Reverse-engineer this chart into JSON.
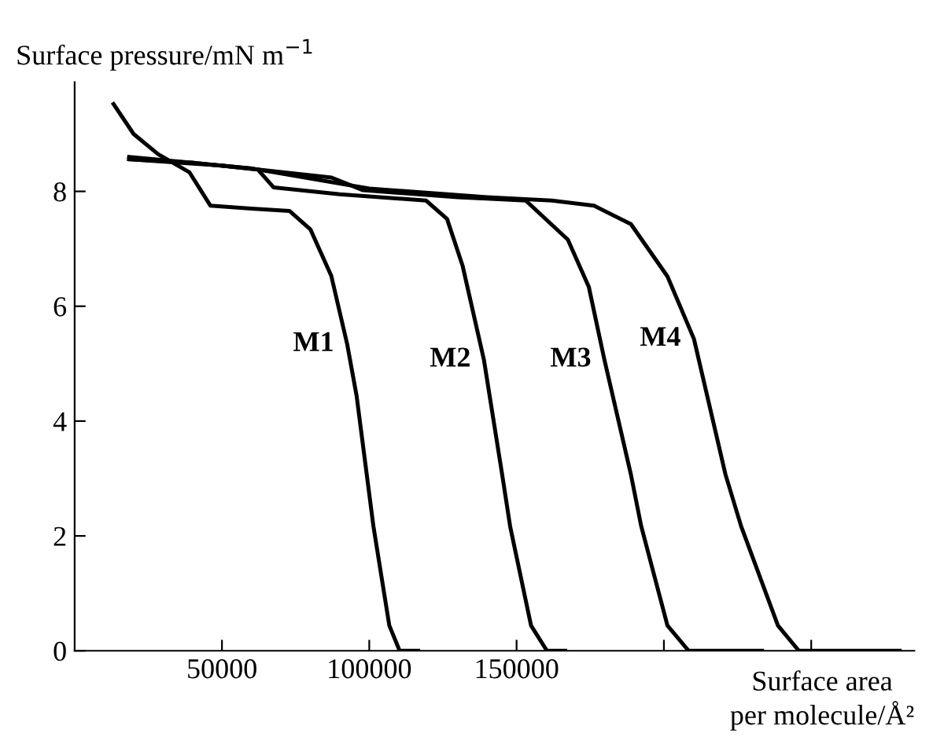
{
  "chart_data": {
    "type": "line",
    "xlabel": "Surface area\nper molecule/Å²",
    "ylabel": "Surface pressure/mN m$^{−1}$",
    "xlim": [
      0,
      285000
    ],
    "ylim": [
      0,
      9.9
    ],
    "xticks": [
      50000,
      100000,
      150000,
      {
        "value": 200000,
        "label": null
      },
      {
        "value": 250000,
        "label": null
      }
    ],
    "yticks": [
      0,
      2,
      4,
      6,
      8
    ],
    "grid": false,
    "legend": false,
    "marker": "none",
    "line_style": "solid",
    "series": [
      {
        "name": "M1",
        "color": "#000000",
        "x": [
          13200,
          20000,
          28300,
          39000,
          46100,
          60000,
          72900,
          80000,
          87100,
          92500,
          95700,
          101400,
          106800,
          110300,
          116600
        ],
        "values": [
          9.52,
          9.0,
          8.65,
          8.33,
          7.75,
          7.7,
          7.66,
          7.34,
          6.53,
          5.34,
          4.44,
          2.17,
          0.44,
          0,
          0
        ]
      },
      {
        "name": "M2",
        "color": "#000000",
        "x": [
          18500,
          40000,
          62200,
          67500,
          90000,
          119300,
          126400,
          131700,
          138900,
          145100,
          147800,
          154900,
          160300,
          166500
        ],
        "values": [
          8.56,
          8.5,
          8.38,
          8.07,
          7.95,
          7.84,
          7.52,
          6.7,
          5.07,
          3.07,
          2.17,
          0.44,
          0,
          0
        ]
      },
      {
        "name": "M3",
        "color": "#000000",
        "x": [
          18500,
          50000,
          87200,
          97900,
          130000,
          153100,
          167400,
          174500,
          179800,
          188800,
          192300,
          201200,
          208400,
          233300
        ],
        "values": [
          8.56,
          8.45,
          8.24,
          8.02,
          7.9,
          7.84,
          7.16,
          6.34,
          5.07,
          3.07,
          2.17,
          0.44,
          0,
          0
        ]
      },
      {
        "name": "M4",
        "color": "#000000",
        "x": [
          18500,
          60000,
          100000,
          140000,
          162000,
          176300,
          188800,
          201200,
          210200,
          220900,
          226200,
          238700,
          245800,
          280000
        ],
        "values": [
          8.6,
          8.4,
          8.05,
          7.9,
          7.84,
          7.75,
          7.43,
          6.52,
          5.43,
          3.07,
          2.17,
          0.44,
          0,
          0
        ]
      }
    ]
  }
}
